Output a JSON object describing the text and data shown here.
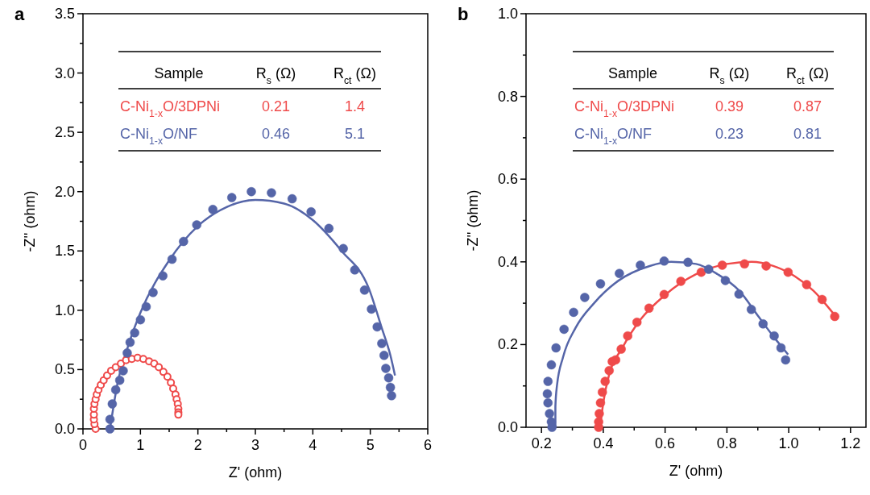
{
  "chart_data": [
    {
      "type": "scatter",
      "title": "a",
      "xlabel": "Z' (ohm)",
      "ylabel": "-Z'' (ohm)",
      "xlim": [
        0,
        6
      ],
      "ylim": [
        0,
        3.5
      ],
      "xticks": [
        0,
        {
          "value": 0.5,
          "label": null
        },
        1,
        {
          "value": 1.5,
          "label": null
        },
        2,
        {
          "value": 2.5,
          "label": null
        },
        3,
        {
          "value": 3.5,
          "label": null
        },
        4,
        {
          "value": 4.5,
          "label": null
        },
        5,
        {
          "value": 5.5,
          "label": null
        },
        6
      ],
      "yticks": [
        {
          "value": 0,
          "label": "0.0"
        },
        {
          "value": 0.25,
          "label": null
        },
        0.5,
        {
          "value": 0.75,
          "label": null
        },
        {
          "value": 1,
          "label": "1.0"
        },
        {
          "value": 1.25,
          "label": null
        },
        1.5,
        {
          "value": 1.75,
          "label": null
        },
        {
          "value": 2,
          "label": "2.0"
        },
        {
          "value": 2.25,
          "label": null
        },
        2.5,
        {
          "value": 2.75,
          "label": null
        },
        {
          "value": 3,
          "label": "3.0"
        },
        {
          "value": 3.25,
          "label": null
        },
        3.5
      ],
      "marker": "circle",
      "line_style": "solid",
      "grid": false,
      "annotations": [
        "Sample",
        "R$_{s}$ (Ω)",
        "R$_{ct}$ (Ω)",
        "0.21",
        "1.4",
        "0.46",
        "5.1"
      ],
      "series": [
        {
          "name": "C-Ni$_{1-x}$O/3DPNi",
          "color": "#ef4a4a",
          "x": [
            0.22,
            0.2,
            0.19,
            0.19,
            0.19,
            0.2,
            0.22,
            0.24,
            0.27,
            0.31,
            0.36,
            0.42,
            0.49,
            0.57,
            0.66,
            0.75,
            0.85,
            0.95,
            1.05,
            1.15,
            1.24,
            1.32,
            1.4,
            1.47,
            1.53,
            1.57,
            1.61,
            1.63,
            1.65,
            1.66,
            1.66,
            1.66
          ],
          "values": [
            0,
            0.04,
            0.08,
            0.12,
            0.17,
            0.21,
            0.25,
            0.29,
            0.33,
            0.37,
            0.41,
            0.45,
            0.49,
            0.52,
            0.55,
            0.58,
            0.59,
            0.6,
            0.59,
            0.57,
            0.55,
            0.52,
            0.48,
            0.44,
            0.39,
            0.34,
            0.29,
            0.25,
            0.21,
            0.17,
            0.14,
            0.12
          ]
        },
        {
          "name": "C-Ni$_{1-x}$O/NF",
          "color": "#5565a8",
          "x": [
            0.47,
            0.47,
            0.51,
            0.57,
            0.64,
            0.7,
            0.77,
            0.82,
            0.9,
            1.0,
            1.1,
            1.22,
            1.39,
            1.55,
            1.75,
            1.98,
            2.26,
            2.59,
            2.93,
            3.28,
            3.64,
            3.97,
            4.28,
            4.53,
            4.73,
            4.9,
            5.02,
            5.12,
            5.2,
            5.24,
            5.27,
            5.32,
            5.35,
            5.37
          ],
          "values": [
            0,
            0.08,
            0.21,
            0.33,
            0.41,
            0.49,
            0.64,
            0.73,
            0.81,
            0.92,
            1.03,
            1.15,
            1.29,
            1.43,
            1.58,
            1.72,
            1.85,
            1.95,
            2.0,
            1.99,
            1.94,
            1.83,
            1.69,
            1.52,
            1.34,
            1.17,
            1.01,
            0.86,
            0.72,
            0.62,
            0.51,
            0.43,
            0.35,
            0.28
          ]
        },
        {
          "type": "line",
          "marker": "none",
          "color": "#5565a8",
          "x": [
            0.47,
            0.6,
            0.8,
            1.0,
            1.5,
            2.0,
            2.5,
            3.0,
            3.5,
            4.0,
            4.5,
            4.97,
            5.2,
            5.35,
            5.43
          ],
          "values": [
            0,
            0.38,
            0.72,
            0.98,
            1.42,
            1.71,
            1.87,
            1.93,
            1.9,
            1.76,
            1.5,
            1.19,
            0.85,
            0.62,
            0.45
          ]
        }
      ]
    },
    {
      "type": "scatter",
      "title": "b",
      "xlabel": "Z' (ohm)",
      "ylabel": "-Z'' (ohm)",
      "xlim": [
        0.15,
        1.25
      ],
      "ylim": [
        0,
        1
      ],
      "xticks": [
        0.2,
        {
          "value": 0.3,
          "label": null
        },
        0.4,
        {
          "value": 0.5,
          "label": null
        },
        0.6,
        {
          "value": 0.7,
          "label": null
        },
        0.8,
        {
          "value": 0.9,
          "label": null
        },
        {
          "value": 1,
          "label": "1.0"
        },
        {
          "value": 1.1,
          "label": null
        },
        1.2
      ],
      "yticks": [
        {
          "value": 0,
          "label": "0.0"
        },
        {
          "value": 0.1,
          "label": null
        },
        0.2,
        {
          "value": 0.3,
          "label": null
        },
        0.4,
        {
          "value": 0.5,
          "label": null
        },
        0.6,
        {
          "value": 0.7,
          "label": null
        },
        0.8,
        {
          "value": 0.9,
          "label": null
        },
        {
          "value": 1,
          "label": "1.0"
        }
      ],
      "marker": "circle",
      "line_style": "solid",
      "grid": false,
      "annotations": [
        "Sample",
        "R$_{s}$ (Ω)",
        "R$_{ct}$ (Ω)",
        "0.39",
        "0.87",
        "0.23",
        "0.81"
      ],
      "series": [
        {
          "name": "C-Ni$_{1-x}$O/3DPNi",
          "color": "#ef4a4a",
          "x": [
            0.385,
            0.385,
            0.387,
            0.391,
            0.397,
            0.406,
            0.419,
            0.429,
            0.44,
            0.458,
            0.479,
            0.509,
            0.548,
            0.597,
            0.651,
            0.717,
            0.785,
            0.857,
            0.927,
            0.998,
            1.058,
            1.108,
            1.149
          ],
          "values": [
            0,
            0.013,
            0.033,
            0.059,
            0.085,
            0.111,
            0.137,
            0.159,
            0.163,
            0.189,
            0.221,
            0.254,
            0.288,
            0.321,
            0.353,
            0.375,
            0.392,
            0.395,
            0.39,
            0.375,
            0.345,
            0.309,
            0.268
          ]
        },
        {
          "name": "C-Ni$_{1-x}$O/NF",
          "color": "#5565a8",
          "x": [
            0.234,
            0.232,
            0.226,
            0.221,
            0.219,
            0.221,
            0.232,
            0.247,
            0.273,
            0.304,
            0.34,
            0.391,
            0.452,
            0.52,
            0.597,
            0.674,
            0.741,
            0.795,
            0.839,
            0.879,
            0.917,
            0.953,
            0.975,
            0.99
          ],
          "values": [
            0,
            0.013,
            0.033,
            0.059,
            0.081,
            0.111,
            0.151,
            0.192,
            0.237,
            0.278,
            0.314,
            0.347,
            0.372,
            0.392,
            0.402,
            0.399,
            0.382,
            0.355,
            0.322,
            0.285,
            0.25,
            0.221,
            0.192,
            0.163
          ]
        },
        {
          "type": "line",
          "marker": "none",
          "color": "#5565a8",
          "x": [
            0.245,
            0.245,
            0.25,
            0.27,
            0.31,
            0.37,
            0.45,
            0.55,
            0.62,
            0.7,
            0.77,
            0.84,
            0.9,
            0.95,
            0.998
          ],
          "values": [
            0,
            0.05,
            0.1,
            0.17,
            0.24,
            0.3,
            0.355,
            0.39,
            0.4,
            0.395,
            0.37,
            0.33,
            0.27,
            0.22,
            0.176
          ]
        },
        {
          "type": "line",
          "marker": "none",
          "color": "#ef4a4a",
          "x": [
            0.39,
            0.4,
            0.42,
            0.46,
            0.52,
            0.6,
            0.7,
            0.8,
            0.88,
            0.95,
            1.02,
            1.08,
            1.15
          ],
          "values": [
            0,
            0.06,
            0.13,
            0.19,
            0.26,
            0.32,
            0.37,
            0.395,
            0.4,
            0.39,
            0.365,
            0.33,
            0.27
          ]
        }
      ]
    }
  ]
}
